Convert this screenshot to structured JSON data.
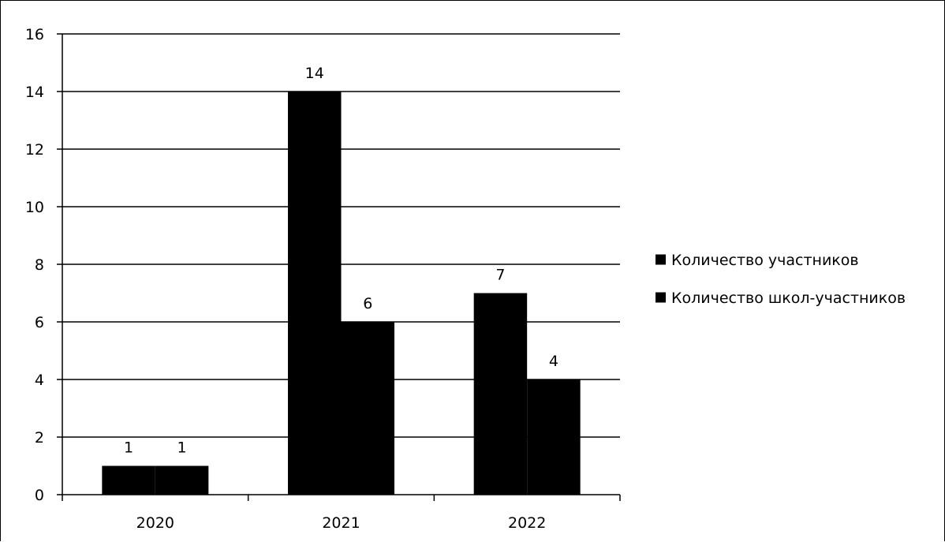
{
  "chart_data": {
    "type": "bar",
    "title": "",
    "xlabel": "",
    "ylabel": "",
    "categories": [
      "2020",
      "2021",
      "2022"
    ],
    "series": [
      {
        "name": "Количество участников",
        "values": [
          1,
          14,
          7
        ],
        "color": "#000000"
      },
      {
        "name": "Количество школ-участников",
        "values": [
          1,
          6,
          4
        ],
        "color": "#000000"
      }
    ],
    "ylim": [
      0,
      16
    ],
    "yticks": [
      "0",
      "2",
      "4",
      "6",
      "8",
      "10",
      "12",
      "14",
      "16"
    ],
    "data_labels": [
      [
        "1",
        "14",
        "7"
      ],
      [
        "1",
        "6",
        "4"
      ]
    ],
    "grid": true,
    "legend_position": "right"
  }
}
